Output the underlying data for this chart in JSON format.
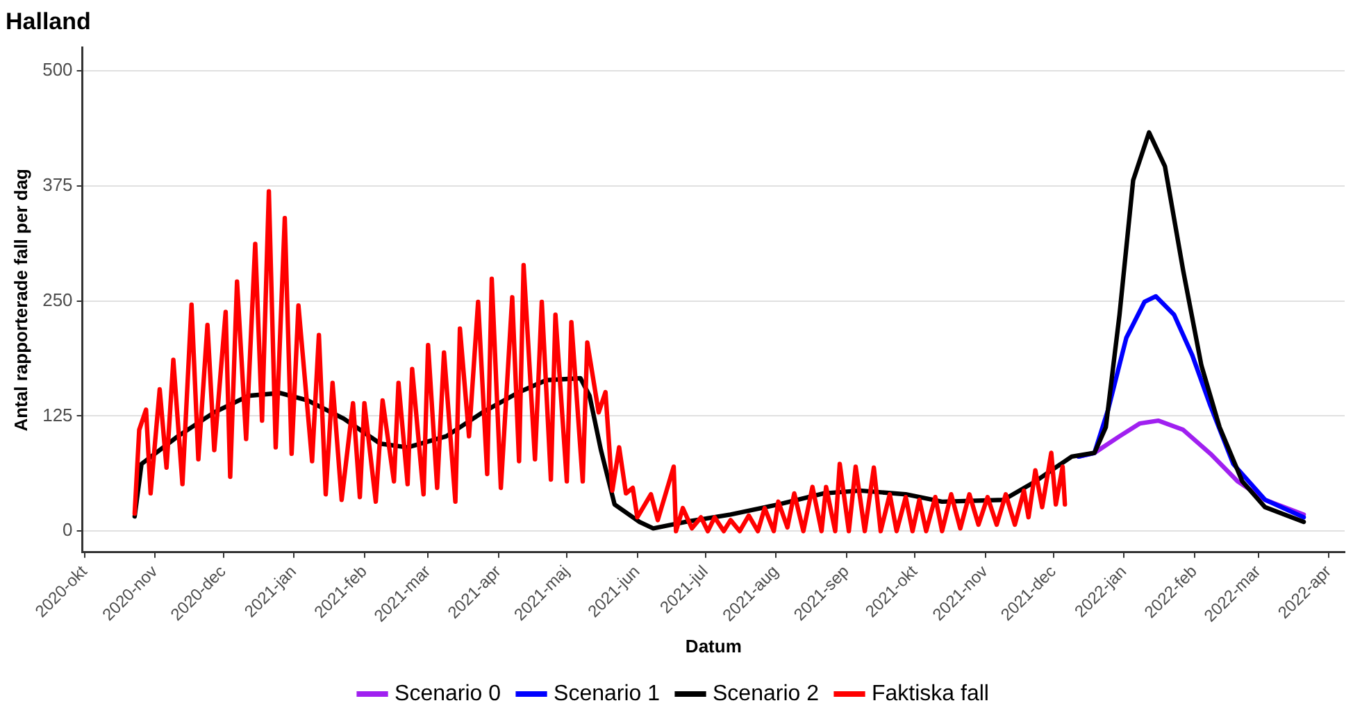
{
  "chart_data": {
    "type": "line",
    "title": "Halland",
    "xlabel": "Datum",
    "ylabel": "Antal rapporterade fall per dag",
    "xlim": [
      "2020-09-30",
      "2022-04-08"
    ],
    "xticks": [
      {
        "value": "2020-10-01",
        "label": "2020-okt"
      },
      {
        "value": "2020-11-01",
        "label": "2020-nov"
      },
      {
        "value": "2020-12-01",
        "label": "2020-dec"
      },
      {
        "value": "2021-01-01",
        "label": "2021-jan"
      },
      {
        "value": "2021-02-01",
        "label": "2021-feb"
      },
      {
        "value": "2021-03-01",
        "label": "2021-mar"
      },
      {
        "value": "2021-04-01",
        "label": "2021-apr"
      },
      {
        "value": "2021-05-01",
        "label": "2021-maj"
      },
      {
        "value": "2021-06-01",
        "label": "2021-jun"
      },
      {
        "value": "2021-07-01",
        "label": "2021-jul"
      },
      {
        "value": "2021-08-01",
        "label": "2021-aug"
      },
      {
        "value": "2021-09-01",
        "label": "2021-sep"
      },
      {
        "value": "2021-10-01",
        "label": "2021-okt"
      },
      {
        "value": "2021-11-01",
        "label": "2021-nov"
      },
      {
        "value": "2021-12-01",
        "label": "2021-dec"
      },
      {
        "value": "2022-01-01",
        "label": "2022-jan"
      },
      {
        "value": "2022-02-01",
        "label": "2022-feb"
      },
      {
        "value": "2022-03-01",
        "label": "2022-mar"
      },
      {
        "value": "2022-04-01",
        "label": "2022-apr"
      }
    ],
    "ylim": [
      -23,
      525
    ],
    "yticks": [
      0,
      125,
      250,
      375,
      500
    ],
    "grid": "y",
    "legend": "bottom",
    "marker": "none",
    "line_style": "solid",
    "series": [
      {
        "name": "Scenario 0",
        "color": "#a020f0",
        "x": [
          "2021-12-12",
          "2021-12-19",
          "2021-12-30",
          "2022-01-08",
          "2022-01-16",
          "2022-01-27",
          "2022-02-08",
          "2022-02-20",
          "2022-03-04",
          "2022-03-21"
        ],
        "values": [
          81,
          85,
          103,
          117,
          120,
          110,
          84,
          54,
          34,
          18
        ]
      },
      {
        "name": "Scenario 1",
        "color": "#0000ff",
        "x": [
          "2021-12-12",
          "2021-12-19",
          "2021-12-25",
          "2022-01-02",
          "2022-01-10",
          "2022-01-15",
          "2022-01-23",
          "2022-01-31",
          "2022-02-08",
          "2022-02-18",
          "2022-03-04",
          "2022-03-21"
        ],
        "values": [
          81,
          85,
          132,
          210,
          249,
          255,
          235,
          191,
          136,
          73,
          34,
          15
        ]
      },
      {
        "name": "Scenario 2",
        "color": "#000000",
        "x": [
          "2020-10-23",
          "2020-10-26",
          "2020-11-11",
          "2020-11-27",
          "2020-12-12",
          "2020-12-26",
          "2021-01-07",
          "2021-01-23",
          "2021-02-08",
          "2021-02-20",
          "2021-03-09",
          "2021-03-25",
          "2021-04-10",
          "2021-04-22",
          "2021-05-07",
          "2021-05-11",
          "2021-05-16",
          "2021-05-22",
          "2021-06-02",
          "2021-06-08",
          "2021-06-22",
          "2021-07-12",
          "2021-08-02",
          "2021-08-22",
          "2021-09-07",
          "2021-09-27",
          "2021-10-13",
          "2021-11-09",
          "2021-11-23",
          "2021-12-09",
          "2021-12-19",
          "2021-12-24",
          "2021-12-30",
          "2022-01-05",
          "2022-01-12",
          "2022-01-19",
          "2022-01-27",
          "2022-02-04",
          "2022-02-12",
          "2022-02-22",
          "2022-03-04",
          "2022-03-21"
        ],
        "values": [
          16,
          73,
          103,
          129,
          147,
          150,
          142,
          122,
          95,
          91,
          103,
          129,
          151,
          164,
          166,
          147,
          88,
          29,
          10,
          3,
          10,
          18,
          29,
          41,
          44,
          40,
          32,
          34,
          54,
          81,
          85,
          113,
          235,
          381,
          433,
          396,
          283,
          180,
          113,
          54,
          26,
          10
        ]
      },
      {
        "name": "Faktiska fall",
        "color": "#ff0000",
        "x": [
          "2020-10-23",
          "2020-10-25",
          "2020-10-28",
          "2020-10-30",
          "2020-11-03",
          "2020-11-06",
          "2020-11-09",
          "2020-11-13",
          "2020-11-17",
          "2020-11-20",
          "2020-11-24",
          "2020-11-27",
          "2020-12-02",
          "2020-12-04",
          "2020-12-07",
          "2020-12-11",
          "2020-12-15",
          "2020-12-18",
          "2020-12-21",
          "2020-12-24",
          "2020-12-28",
          "2020-12-31",
          "2021-01-03",
          "2021-01-09",
          "2021-01-12",
          "2021-01-15",
          "2021-01-18",
          "2021-01-22",
          "2021-01-27",
          "2021-01-30",
          "2021-02-01",
          "2021-02-06",
          "2021-02-09",
          "2021-02-14",
          "2021-02-16",
          "2021-02-20",
          "2021-02-22",
          "2021-02-27",
          "2021-03-01",
          "2021-03-05",
          "2021-03-08",
          "2021-03-13",
          "2021-03-15",
          "2021-03-19",
          "2021-03-23",
          "2021-03-27",
          "2021-03-29",
          "2021-04-02",
          "2021-04-07",
          "2021-04-10",
          "2021-04-12",
          "2021-04-17",
          "2021-04-20",
          "2021-04-24",
          "2021-04-26",
          "2021-05-01",
          "2021-05-03",
          "2021-05-08",
          "2021-05-10",
          "2021-05-15",
          "2021-05-18",
          "2021-05-21",
          "2021-05-24",
          "2021-05-27",
          "2021-05-30",
          "2021-06-01",
          "2021-06-07",
          "2021-06-10",
          "2021-06-17",
          "2021-06-18",
          "2021-06-21",
          "2021-06-25",
          "2021-06-29",
          "2021-07-02",
          "2021-07-05",
          "2021-07-09",
          "2021-07-12",
          "2021-07-16",
          "2021-07-20",
          "2021-07-24",
          "2021-07-27",
          "2021-07-31",
          "2021-08-02",
          "2021-08-06",
          "2021-08-09",
          "2021-08-13",
          "2021-08-17",
          "2021-08-21",
          "2021-08-23",
          "2021-08-27",
          "2021-08-29",
          "2021-09-02",
          "2021-09-05",
          "2021-09-09",
          "2021-09-13",
          "2021-09-16",
          "2021-09-20",
          "2021-09-23",
          "2021-09-27",
          "2021-09-30",
          "2021-10-03",
          "2021-10-06",
          "2021-10-10",
          "2021-10-13",
          "2021-10-17",
          "2021-10-21",
          "2021-10-25",
          "2021-10-29",
          "2021-11-02",
          "2021-11-06",
          "2021-11-10",
          "2021-11-14",
          "2021-11-18",
          "2021-11-20",
          "2021-11-23",
          "2021-11-26",
          "2021-11-30",
          "2021-12-02",
          "2021-12-05",
          "2021-12-06"
        ],
        "values": [
          19,
          110,
          132,
          41,
          154,
          69,
          186,
          51,
          246,
          78,
          224,
          88,
          238,
          59,
          271,
          100,
          312,
          120,
          369,
          91,
          340,
          84,
          245,
          76,
          213,
          40,
          161,
          34,
          139,
          37,
          139,
          32,
          142,
          54,
          161,
          51,
          176,
          40,
          202,
          47,
          194,
          32,
          220,
          103,
          249,
          62,
          274,
          47,
          254,
          76,
          289,
          78,
          249,
          56,
          235,
          54,
          227,
          54,
          205,
          129,
          151,
          44,
          91,
          41,
          47,
          15,
          40,
          12,
          70,
          0,
          25,
          3,
          15,
          0,
          15,
          0,
          12,
          0,
          17,
          0,
          25,
          0,
          32,
          4,
          41,
          0,
          48,
          0,
          48,
          0,
          73,
          0,
          70,
          0,
          69,
          0,
          40,
          0,
          37,
          0,
          34,
          0,
          37,
          0,
          40,
          3,
          40,
          7,
          37,
          7,
          40,
          7,
          44,
          15,
          66,
          26,
          85,
          29,
          70,
          29
        ]
      }
    ]
  }
}
